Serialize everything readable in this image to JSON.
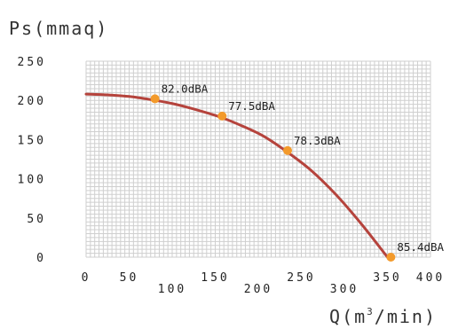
{
  "chart_data": {
    "type": "line",
    "ylabel": "Ps(mmaq)",
    "xlabel_pre": "Q(m",
    "xlabel_sup": "3",
    "xlabel_post": "/min)",
    "xlim": [
      0,
      400
    ],
    "ylim": [
      0,
      250
    ],
    "x_ticks": [
      0,
      50,
      100,
      150,
      200,
      250,
      300,
      350,
      400
    ],
    "y_ticks": [
      250,
      200,
      150,
      100,
      50,
      0
    ],
    "grid": true,
    "curve": {
      "color": "#b5433c",
      "x": [
        0,
        25,
        50,
        75,
        100,
        125,
        155,
        180,
        205,
        230,
        260,
        290,
        320,
        350
      ],
      "y": [
        208,
        207,
        205,
        201,
        196,
        189,
        179,
        168,
        155,
        137,
        112,
        80,
        42,
        0
      ]
    },
    "points": [
      {
        "x": 80,
        "y": 202,
        "label": "82.0dBA"
      },
      {
        "x": 158,
        "y": 180,
        "label": "77.5dBA"
      },
      {
        "x": 234,
        "y": 136,
        "label": "78.3dBA"
      },
      {
        "x": 354,
        "y": 0,
        "label": "85.4dBA"
      }
    ],
    "point_color": "#f39a2b",
    "grid_color": "#cfcfcf"
  }
}
